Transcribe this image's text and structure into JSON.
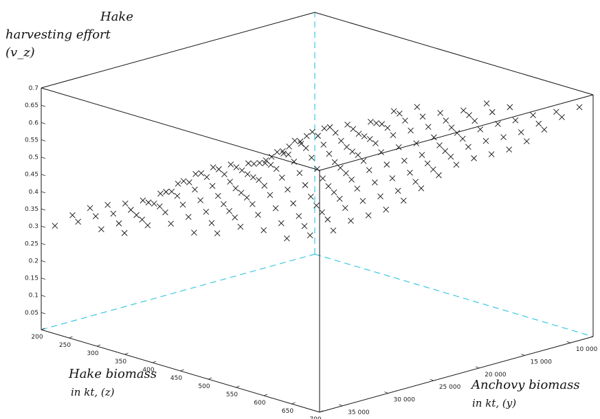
{
  "chart_data": {
    "type": "scatter",
    "projection": "3d",
    "marker": "x",
    "labels": {
      "z_title_1": "Hake",
      "z_title_2": "harvesting effort",
      "z_title_3": "(v_z)",
      "x_title_1": "Hake biomass",
      "x_title_2": "in kt, (z)",
      "y_title_1": "Anchovy biomass",
      "y_title_2": "in kt, (y)"
    },
    "z_axis": {
      "label": "Hake harvesting effort (v_z)",
      "range": [
        0,
        0.7
      ],
      "ticks": [
        "0.7",
        "0.65",
        "0.6",
        "0.55",
        "0.5",
        "0.45",
        "0.4",
        "0.35",
        "0.3",
        "0.25",
        "0.2",
        "0.15",
        "0.1",
        "0.05"
      ]
    },
    "x_axis": {
      "label": "Hake biomass in kt, (z)",
      "range": [
        200,
        700
      ],
      "ticks": [
        "200",
        "250",
        "300",
        "350",
        "400",
        "450",
        "500",
        "550",
        "600",
        "650",
        "700"
      ]
    },
    "y_axis": {
      "label": "Anchovy biomass in kt, (y)",
      "range": [
        7500,
        37500
      ],
      "ticks": [
        "10 000",
        "15 000",
        "20 000",
        "25 000",
        "30 000",
        "35 000"
      ]
    },
    "grid": false,
    "surface_points": [
      {
        "hake_kt": 200,
        "anchovy_kt_range": [
          7500,
          37500
        ],
        "effort_range": [
          0.29,
          0.33
        ]
      },
      {
        "hake_kt": 300,
        "anchovy_kt_range": [
          7500,
          37500
        ],
        "effort_range": [
          0.33,
          0.45
        ]
      },
      {
        "hake_kt": 400,
        "anchovy_kt_range": [
          7500,
          37500
        ],
        "effort_range": [
          0.38,
          0.52
        ]
      },
      {
        "hake_kt": 500,
        "anchovy_kt_range": [
          7500,
          37500
        ],
        "effort_range": [
          0.42,
          0.58
        ]
      },
      {
        "hake_kt": 600,
        "anchovy_kt_range": [
          7500,
          37500
        ],
        "effort_range": [
          0.46,
          0.62
        ]
      },
      {
        "hake_kt": 700,
        "anchovy_kt_range": [
          7500,
          37500
        ],
        "effort_range": [
          0.5,
          0.66
        ]
      }
    ]
  }
}
